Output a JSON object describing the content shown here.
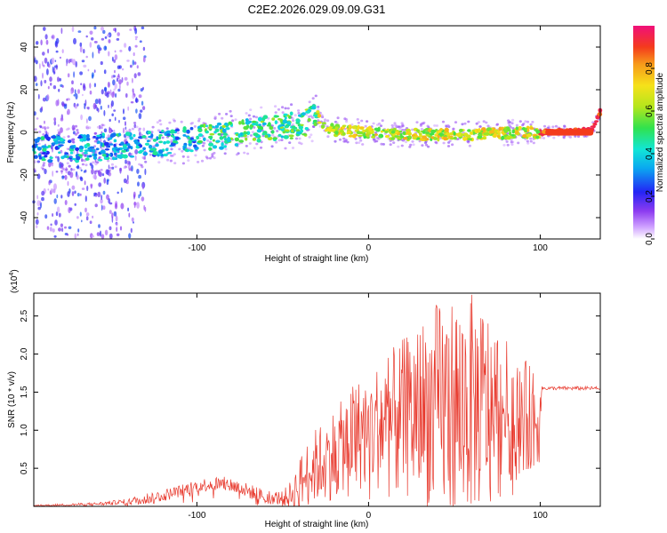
{
  "figure": {
    "title": "C2E2.2026.029.09.09.G31"
  },
  "chart_data": [
    {
      "type": "heatmap",
      "title": "C2E2.2026.029.09.09.G31",
      "xlabel": "Height of straight line (km)",
      "ylabel": "Frequency (Hz)",
      "xlim": [
        -195,
        135
      ],
      "ylim": [
        -50,
        50
      ],
      "xticks": [
        -100,
        0,
        100
      ],
      "yticks": [
        -40,
        -20,
        0,
        20,
        40
      ],
      "ridge": {
        "x": [
          -195,
          -150,
          -120,
          -100,
          -80,
          -60,
          -45,
          -35,
          -30,
          -25,
          -20,
          0,
          20,
          60,
          90,
          100,
          130,
          135
        ],
        "y": [
          -8,
          -7,
          -5,
          -3,
          -1,
          2,
          3,
          5,
          8,
          2,
          1,
          0,
          -1,
          -1,
          0,
          0,
          1,
          10
        ]
      },
      "colorbar": {
        "label": "Normalized spectral amplitude",
        "range": [
          0.0,
          1.0
        ],
        "ticks": [
          0.0,
          0.2,
          0.4,
          0.6,
          0.8
        ],
        "tick_labels": [
          "0.0",
          "0.2",
          "0.4",
          "0.6",
          "0.8"
        ]
      }
    },
    {
      "type": "line",
      "xlabel": "Height of straight line (km)",
      "ylabel": "SNR (10 * v/v)",
      "y_multiplier": "(x10",
      "y_exponent": "4",
      "xlim": [
        -195,
        135
      ],
      "ylim": [
        0,
        2.8
      ],
      "xticks": [
        -100,
        0,
        100
      ],
      "yticks": [
        0.5,
        1.0,
        1.5,
        2.0,
        2.5
      ],
      "color": "#e83a2e",
      "series": [
        {
          "name": "SNR",
          "x": [
            -195,
            -160,
            -140,
            -130,
            -120,
            -110,
            -100,
            -90,
            -80,
            -70,
            -60,
            -50,
            -45,
            -40,
            -35,
            -30,
            -25,
            -20,
            -15,
            -10,
            -5,
            0,
            10,
            20,
            30,
            40,
            50,
            60,
            70,
            80,
            90,
            100,
            101,
            120,
            135
          ],
          "y": [
            0.01,
            0.03,
            0.06,
            0.1,
            0.14,
            0.2,
            0.27,
            0.3,
            0.28,
            0.2,
            0.13,
            0.1,
            0.15,
            0.3,
            0.45,
            0.55,
            0.6,
            0.7,
            0.8,
            0.9,
            0.95,
            1.0,
            1.1,
            1.15,
            1.25,
            1.3,
            1.3,
            1.35,
            1.3,
            1.25,
            1.2,
            1.15,
            1.55,
            1.55,
            1.56
          ],
          "envelope": [
            0.02,
            0.05,
            0.1,
            0.18,
            0.22,
            0.28,
            0.35,
            0.4,
            0.38,
            0.3,
            0.22,
            0.2,
            0.35,
            0.65,
            0.9,
            1.05,
            1.15,
            1.3,
            1.4,
            1.6,
            1.7,
            1.75,
            2.0,
            2.2,
            2.45,
            2.7,
            2.8,
            2.8,
            2.6,
            2.2,
            1.95,
            1.75,
            0.03,
            0.03,
            0.03
          ]
        }
      ]
    }
  ]
}
